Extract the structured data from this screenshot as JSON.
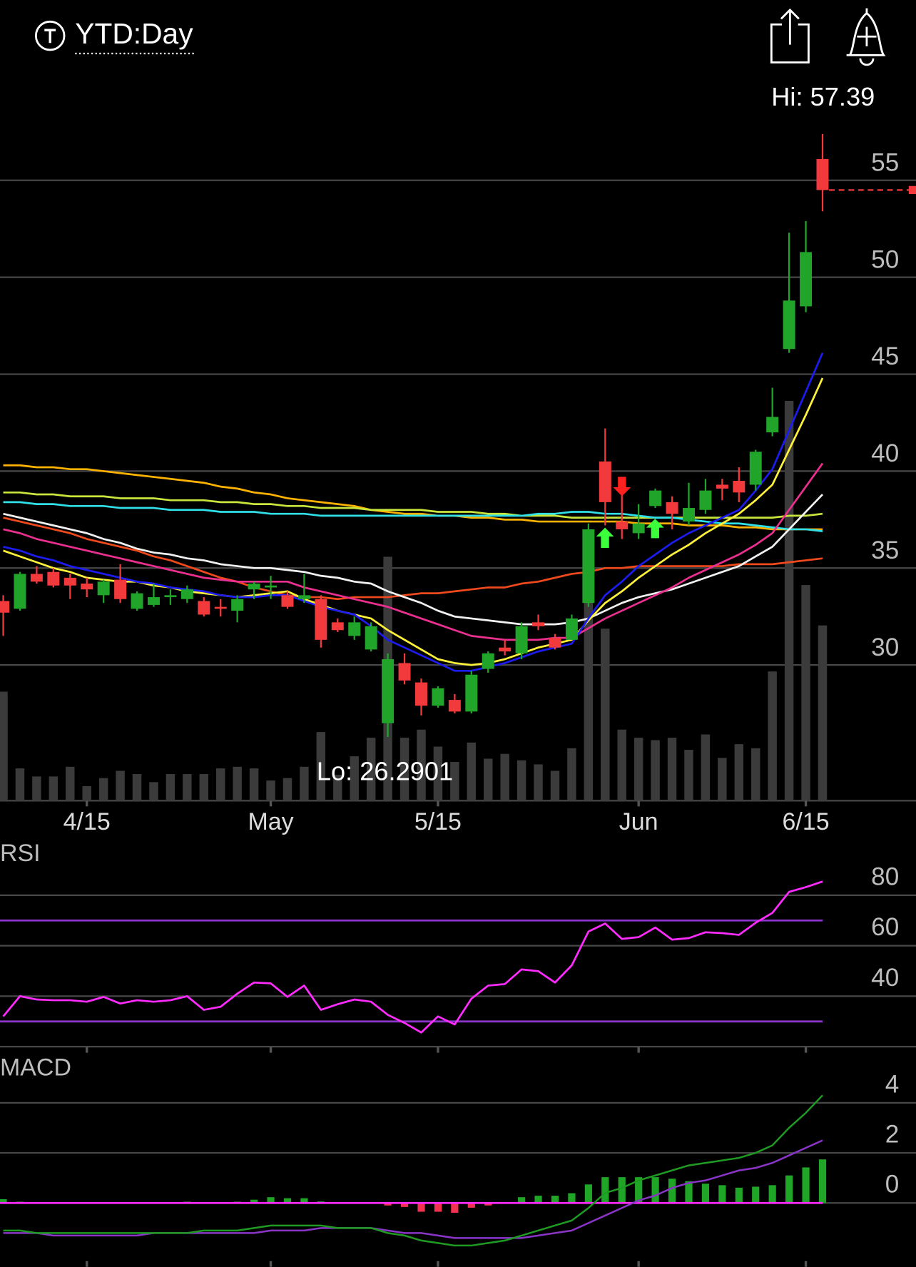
{
  "header": {
    "title": "YTD:Day"
  },
  "chart_data": [
    {
      "type": "candlestick",
      "categories": [
        null,
        null,
        null,
        null,
        null,
        "4/15",
        null,
        null,
        null,
        null,
        null,
        null,
        null,
        null,
        null,
        null,
        "May",
        null,
        null,
        null,
        null,
        null,
        null,
        null,
        null,
        null,
        "5/15",
        null,
        null,
        null,
        null,
        null,
        null,
        null,
        null,
        null,
        null,
        null,
        "Jun",
        null,
        null,
        null,
        null,
        null,
        null,
        null,
        null,
        null,
        "6/15",
        null
      ],
      "open": [
        33.3,
        32.9,
        34.7,
        34.8,
        34.5,
        34.2,
        33.6,
        34.4,
        32.9,
        33.1,
        33.5,
        33.4,
        33.3,
        33.0,
        32.8,
        33.9,
        34.0,
        33.6,
        33.4,
        33.4,
        32.2,
        31.5,
        30.8,
        27.0,
        30.1,
        29.1,
        27.9,
        28.2,
        27.6,
        29.8,
        30.9,
        30.6,
        32.2,
        31.4,
        31.3,
        33.2,
        40.5,
        37.4,
        36.8,
        38.2,
        38.4,
        37.4,
        38.0,
        39.3,
        39.5,
        39.3,
        42.0,
        46.3,
        48.5,
        56.1
      ],
      "high": [
        33.6,
        34.8,
        35.1,
        35.0,
        34.7,
        34.5,
        34.4,
        35.2,
        33.8,
        34.2,
        33.9,
        34.1,
        33.5,
        33.4,
        33.6,
        34.3,
        34.6,
        33.8,
        34.7,
        33.6,
        32.4,
        32.5,
        32.2,
        30.6,
        30.6,
        29.3,
        28.9,
        28.5,
        29.7,
        30.7,
        31.3,
        32.2,
        32.6,
        31.6,
        32.6,
        37.3,
        42.2,
        38.8,
        38.3,
        39.1,
        38.7,
        39.4,
        39.6,
        39.6,
        40.2,
        41.1,
        44.3,
        52.3,
        52.9,
        57.39
      ],
      "low": [
        31.5,
        32.8,
        34.2,
        34.0,
        33.4,
        33.5,
        33.2,
        33.2,
        32.8,
        33.0,
        33.1,
        33.2,
        32.5,
        32.5,
        32.2,
        33.4,
        33.4,
        32.9,
        33.2,
        30.9,
        31.7,
        31.3,
        30.7,
        26.2901,
        29.0,
        27.4,
        27.8,
        27.5,
        27.5,
        29.6,
        30.5,
        30.3,
        31.8,
        30.8,
        31.3,
        33.0,
        37.2,
        36.5,
        36.5,
        38.1,
        37.0,
        37.2,
        37.8,
        38.5,
        38.4,
        39.0,
        41.8,
        46.1,
        48.2,
        53.4
      ],
      "close": [
        32.7,
        34.7,
        34.3,
        34.1,
        34.1,
        33.9,
        34.3,
        33.4,
        33.7,
        33.5,
        33.6,
        33.9,
        32.6,
        32.9,
        33.4,
        34.2,
        34.1,
        33.0,
        33.6,
        31.3,
        31.8,
        32.2,
        32.0,
        30.3,
        29.2,
        27.9,
        28.8,
        27.6,
        29.5,
        30.6,
        30.7,
        32.0,
        32.0,
        30.9,
        32.4,
        37.0,
        38.4,
        37.0,
        37.3,
        39.0,
        37.8,
        38.1,
        39.0,
        39.1,
        38.9,
        41.0,
        42.8,
        48.8,
        51.3,
        54.5
      ],
      "up_color": "#21a42a",
      "down_color": "#f2393c",
      "ylim": [
        23,
        58.5
      ],
      "yticks": [
        30,
        35,
        40,
        45,
        50,
        55
      ],
      "grid": true,
      "annotations": {
        "high": "Hi: 57.39",
        "low": "Lo: 26.2901"
      },
      "volume": {
        "color": "#3b3b3b",
        "vlim": [
          0,
          840
        ],
        "values": [
          135,
          40,
          30,
          30,
          42,
          18,
          28,
          37,
          33,
          23,
          33,
          33,
          33,
          40,
          42,
          40,
          25,
          28,
          42,
          85,
          32,
          55,
          78,
          302,
          78,
          88,
          67,
          48,
          72,
          52,
          58,
          50,
          45,
          37,
          65,
          245,
          213,
          88,
          78,
          75,
          78,
          63,
          82,
          53,
          70,
          65,
          160,
          495,
          267,
          217
        ]
      },
      "series": [
        {
          "color": "#ffb300",
          "values": [
            40.3,
            40.3,
            40.2,
            40.2,
            40.1,
            40.1,
            40.0,
            39.9,
            39.8,
            39.7,
            39.6,
            39.5,
            39.4,
            39.2,
            39.1,
            38.9,
            38.8,
            38.6,
            38.5,
            38.4,
            38.3,
            38.2,
            38.0,
            37.9,
            37.8,
            37.8,
            37.7,
            37.7,
            37.6,
            37.6,
            37.5,
            37.5,
            37.4,
            37.4,
            37.4,
            37.4,
            37.4,
            37.4,
            37.3,
            37.3,
            37.3,
            37.2,
            37.2,
            37.2,
            37.1,
            37.1,
            37.0,
            37.0,
            37.0,
            37.0
          ]
        },
        {
          "color": "#c8e63c",
          "values": [
            38.9,
            38.9,
            38.8,
            38.8,
            38.7,
            38.7,
            38.7,
            38.6,
            38.6,
            38.6,
            38.5,
            38.5,
            38.5,
            38.4,
            38.4,
            38.3,
            38.3,
            38.2,
            38.2,
            38.1,
            38.1,
            38.1,
            38.0,
            38.0,
            38.0,
            38.0,
            37.9,
            37.9,
            37.9,
            37.8,
            37.8,
            37.7,
            37.7,
            37.7,
            37.6,
            37.6,
            37.6,
            37.6,
            37.6,
            37.6,
            37.6,
            37.6,
            37.6,
            37.6,
            37.6,
            37.6,
            37.6,
            37.7,
            37.7,
            37.8
          ]
        },
        {
          "color": "#2fe0e8",
          "values": [
            38.4,
            38.4,
            38.3,
            38.3,
            38.2,
            38.2,
            38.2,
            38.1,
            38.1,
            38.1,
            38.0,
            38.0,
            38.0,
            37.9,
            37.9,
            37.9,
            37.8,
            37.8,
            37.8,
            37.7,
            37.7,
            37.7,
            37.7,
            37.7,
            37.7,
            37.7,
            37.7,
            37.7,
            37.7,
            37.7,
            37.7,
            37.7,
            37.8,
            37.8,
            37.9,
            37.9,
            37.8,
            37.8,
            37.7,
            37.6,
            37.6,
            37.5,
            37.4,
            37.3,
            37.3,
            37.2,
            37.1,
            37.0,
            37.0,
            36.9
          ]
        },
        {
          "color": "#f04a1c",
          "values": [
            37.6,
            37.4,
            37.2,
            37.0,
            36.8,
            36.5,
            36.3,
            36.1,
            35.9,
            35.6,
            35.4,
            35.1,
            34.8,
            34.5,
            34.3,
            34.0,
            33.8,
            33.6,
            33.5,
            33.5,
            33.4,
            33.5,
            33.5,
            33.5,
            33.6,
            33.7,
            33.7,
            33.8,
            33.9,
            34.0,
            34.0,
            34.2,
            34.3,
            34.5,
            34.7,
            34.8,
            35.0,
            35.0,
            35.1,
            35.1,
            35.1,
            35.1,
            35.1,
            35.1,
            35.2,
            35.2,
            35.2,
            35.3,
            35.4,
            35.5
          ]
        },
        {
          "color": "#f2f2f2",
          "values": [
            37.8,
            37.6,
            37.4,
            37.2,
            37.0,
            36.8,
            36.5,
            36.3,
            36.0,
            35.8,
            35.7,
            35.5,
            35.4,
            35.2,
            35.1,
            35.0,
            35.0,
            34.9,
            34.8,
            34.6,
            34.5,
            34.3,
            34.2,
            33.8,
            33.5,
            33.2,
            32.8,
            32.5,
            32.4,
            32.3,
            32.2,
            32.1,
            32.1,
            32.1,
            32.2,
            32.4,
            32.8,
            33.2,
            33.5,
            33.7,
            33.9,
            34.2,
            34.5,
            34.8,
            35.1,
            35.6,
            36.1,
            37.0,
            37.9,
            38.8
          ]
        },
        {
          "color": "#ea2f8f",
          "values": [
            37.0,
            36.8,
            36.5,
            36.3,
            36.1,
            35.9,
            35.7,
            35.5,
            35.3,
            35.1,
            34.9,
            34.7,
            34.5,
            34.4,
            34.3,
            34.3,
            34.3,
            34.3,
            34.0,
            33.8,
            33.6,
            33.4,
            33.2,
            33.0,
            32.7,
            32.4,
            32.1,
            31.8,
            31.5,
            31.4,
            31.3,
            31.3,
            31.3,
            31.4,
            31.4,
            31.9,
            32.4,
            32.8,
            33.2,
            33.6,
            34.0,
            34.5,
            34.9,
            35.3,
            35.7,
            36.2,
            36.8,
            38.0,
            39.2,
            40.4
          ]
        },
        {
          "color": "#fff23a",
          "values": [
            35.9,
            35.6,
            35.3,
            35.0,
            34.8,
            34.5,
            34.4,
            34.3,
            34.3,
            34.1,
            34.0,
            33.8,
            33.7,
            33.6,
            33.5,
            33.6,
            33.7,
            33.8,
            33.4,
            33.1,
            32.8,
            32.6,
            32.4,
            31.8,
            31.3,
            30.8,
            30.3,
            30.1,
            30.0,
            30.1,
            30.3,
            30.6,
            30.9,
            31.1,
            31.3,
            32.3,
            33.2,
            33.8,
            34.5,
            35.1,
            35.7,
            36.2,
            36.8,
            37.3,
            37.8,
            38.5,
            39.3,
            41.1,
            42.9,
            44.8
          ]
        },
        {
          "color": "#1c1cf0",
          "values": [
            36.1,
            35.9,
            35.6,
            35.4,
            35.1,
            34.9,
            34.7,
            34.5,
            34.3,
            34.2,
            34.0,
            33.9,
            33.8,
            33.6,
            33.5,
            33.5,
            33.6,
            33.6,
            33.3,
            33.0,
            32.8,
            32.6,
            32.0,
            31.3,
            30.9,
            30.5,
            30.1,
            29.7,
            29.7,
            29.9,
            30.1,
            30.4,
            30.7,
            30.9,
            31.1,
            32.4,
            33.6,
            34.3,
            35.1,
            35.7,
            36.3,
            36.8,
            37.2,
            37.6,
            38.0,
            39.0,
            40.1,
            42.1,
            44.1,
            46.1
          ]
        }
      ]
    },
    {
      "type": "line",
      "title": "RSI",
      "color": "#ff2bff",
      "values": [
        32.0,
        40.0,
        38.7,
        38.4,
        38.4,
        37.8,
        39.7,
        37.1,
        38.4,
        37.8,
        38.4,
        40.0,
        34.6,
        35.8,
        41.0,
        45.4,
        45.1,
        39.7,
        44.2,
        34.6,
        36.8,
        38.7,
        37.8,
        32.6,
        29.4,
        25.6,
        32.0,
        28.8,
        39.0,
        44.2,
        44.8,
        50.6,
        49.9,
        45.4,
        52.2,
        65.6,
        68.8,
        62.7,
        63.4,
        67.2,
        62.4,
        63.0,
        65.3,
        65.0,
        64.3,
        69.1,
        73.0,
        81.3,
        83.2,
        85.4
      ],
      "ylim": [
        20,
        100
      ],
      "yticks": [
        40,
        60,
        80
      ],
      "grid": true,
      "reference_lines": [
        30,
        70
      ],
      "reference_color": "#8a34c8"
    },
    {
      "type": "macd",
      "title": "MACD",
      "macd": [
        -1.1,
        -1.1,
        -1.2,
        -1.2,
        -1.2,
        -1.2,
        -1.2,
        -1.2,
        -1.2,
        -1.2,
        -1.2,
        -1.2,
        -1.1,
        -1.1,
        -1.1,
        -1.0,
        -0.9,
        -0.9,
        -0.9,
        -0.9,
        -1.0,
        -1.0,
        -1.0,
        -1.2,
        -1.3,
        -1.5,
        -1.6,
        -1.7,
        -1.7,
        -1.6,
        -1.5,
        -1.3,
        -1.1,
        -0.9,
        -0.7,
        -0.2,
        0.4,
        0.6,
        0.9,
        1.1,
        1.3,
        1.5,
        1.6,
        1.7,
        1.8,
        2.0,
        2.3,
        3.0,
        3.6,
        4.3
      ],
      "signal": [
        -1.2,
        -1.2,
        -1.2,
        -1.3,
        -1.3,
        -1.3,
        -1.3,
        -1.3,
        -1.3,
        -1.2,
        -1.2,
        -1.2,
        -1.2,
        -1.2,
        -1.2,
        -1.2,
        -1.1,
        -1.1,
        -1.1,
        -1.0,
        -1.0,
        -1.0,
        -1.0,
        -1.1,
        -1.2,
        -1.2,
        -1.3,
        -1.4,
        -1.4,
        -1.4,
        -1.4,
        -1.4,
        -1.3,
        -1.2,
        -1.1,
        -0.8,
        -0.5,
        -0.2,
        0.1,
        0.3,
        0.6,
        0.8,
        0.9,
        1.1,
        1.3,
        1.4,
        1.6,
        1.9,
        2.2,
        2.5
      ],
      "histogram": [
        0.15,
        0.05,
        0,
        0,
        0,
        0,
        0,
        0,
        0,
        0,
        0,
        0.05,
        0,
        0,
        0.05,
        0.13,
        0.23,
        0.19,
        0.19,
        0.06,
        0,
        0,
        0,
        -0.1,
        -0.16,
        -0.35,
        -0.35,
        -0.39,
        -0.19,
        -0.1,
        0,
        0.23,
        0.29,
        0.29,
        0.39,
        0.74,
        1.03,
        1.03,
        1.03,
        1.03,
        0.97,
        0.87,
        0.77,
        0.71,
        0.61,
        0.65,
        0.71,
        1.1,
        1.42,
        1.74
      ],
      "macd_color": "#1f9a22",
      "signal_color": "#8a34c8",
      "up_color": "#1fa626",
      "down_color": "#f0314f",
      "zero_color": "#ff2bff",
      "ylim": [
        -2.5,
        5.8
      ],
      "yticks": [
        0,
        2,
        4
      ],
      "grid": true
    }
  ]
}
